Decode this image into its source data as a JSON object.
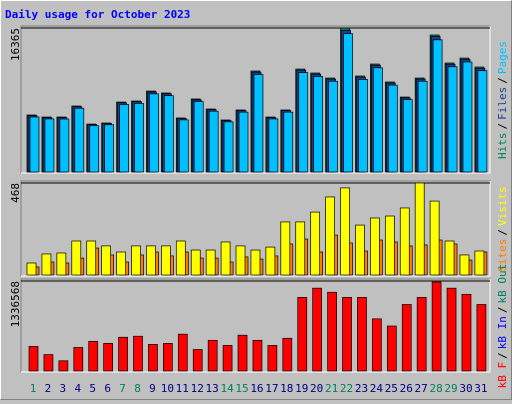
{
  "chart_data": [
    {
      "type": "bar",
      "title": "Daily usage for October 2023",
      "categories": [
        "1",
        "2",
        "3",
        "4",
        "5",
        "6",
        "7",
        "8",
        "9",
        "10",
        "11",
        "12",
        "13",
        "14",
        "15",
        "16",
        "17",
        "18",
        "19",
        "20",
        "21",
        "22",
        "23",
        "24",
        "25",
        "26",
        "27",
        "28",
        "29",
        "30",
        "31"
      ],
      "category_colors": [
        "#00805c",
        "#000080",
        "#000080",
        "#000080",
        "#000080",
        "#000080",
        "#00805c",
        "#00805c",
        "#000080",
        "#000080",
        "#000080",
        "#000080",
        "#000080",
        "#00805c",
        "#00805c",
        "#000080",
        "#000080",
        "#000080",
        "#000080",
        "#000080",
        "#00805c",
        "#00805c",
        "#000080",
        "#000080",
        "#000080",
        "#000080",
        "#000080",
        "#00805c",
        "#00805c",
        "#000080",
        "#000080"
      ],
      "legend_separator": "/",
      "ylim": [
        0,
        16365
      ],
      "yticks": [
        16365
      ],
      "series": [
        {
          "name": "Hits",
          "color": "#00805c",
          "values": [
            6480,
            6250,
            6250,
            7500,
            5450,
            5570,
            7950,
            8070,
            9200,
            8980,
            6140,
            8300,
            7160,
            5910,
            7050,
            11480,
            6250,
            7050,
            11700,
            11250,
            10680,
            16365,
            10910,
            12270,
            10230,
            8520,
            10680,
            15570,
            12390,
            12950,
            11930
          ]
        },
        {
          "name": "Files",
          "color": "#1c3f94",
          "values": [
            6400,
            6180,
            6170,
            7420,
            5390,
            5500,
            7860,
            7980,
            9100,
            8880,
            6070,
            8200,
            7080,
            5840,
            6970,
            11350,
            6180,
            6970,
            11570,
            11120,
            10560,
            16100,
            10780,
            12130,
            10110,
            8430,
            10560,
            15390,
            12250,
            12800,
            11790
          ]
        },
        {
          "name": "Pages",
          "color": "#00c0ff",
          "values": [
            6250,
            6030,
            6020,
            7240,
            5260,
            5370,
            7670,
            7790,
            8880,
            8670,
            5920,
            8000,
            6910,
            5700,
            6800,
            11080,
            6030,
            6800,
            11290,
            10850,
            10310,
            15720,
            10520,
            11840,
            9870,
            8230,
            10310,
            15020,
            11960,
            12500,
            11510
          ]
        }
      ]
    },
    {
      "type": "bar",
      "ylim": [
        0,
        468
      ],
      "yticks": [
        468
      ],
      "series": [
        {
          "name": "Sites",
          "color": "#ff8000",
          "values": [
            41,
            66,
            61,
            86,
            137,
            102,
            66,
            102,
            117,
            97,
            117,
            86,
            86,
            66,
            92,
            81,
            97,
            158,
            183,
            117,
            203,
            163,
            122,
            178,
            168,
            148,
            153,
            178,
            158,
            76,
            117
          ]
        },
        {
          "name": "Visits",
          "color": "#ffff00",
          "values": [
            61,
            107,
            112,
            173,
            173,
            148,
            117,
            148,
            148,
            148,
            173,
            127,
            127,
            168,
            148,
            127,
            142,
            270,
            270,
            320,
            397,
            443,
            254,
            290,
            300,
            341,
            468,
            376,
            173,
            102,
            122
          ]
        }
      ]
    },
    {
      "type": "bar",
      "ylim": [
        0,
        1336568
      ],
      "yticks": [
        1336568
      ],
      "series": [
        {
          "name": "kB F",
          "color": "#ff0000",
          "values": [
            364500,
            243000,
            151900,
            349300,
            440500,
            410100,
            501200,
            516400,
            394900,
            410100,
            546800,
            319000,
            455600,
            379700,
            531600,
            455600,
            379700,
            486000,
            1093500,
            1230200,
            1169500,
            1093500,
            1093500,
            774600,
            668300,
            987200,
            1093500,
            1321400,
            1230200,
            1139100,
            987200
          ]
        },
        {
          "name": "kB In",
          "color": "#0000ff"
        },
        {
          "name": "kB Out",
          "color": "#00805c"
        }
      ]
    }
  ]
}
